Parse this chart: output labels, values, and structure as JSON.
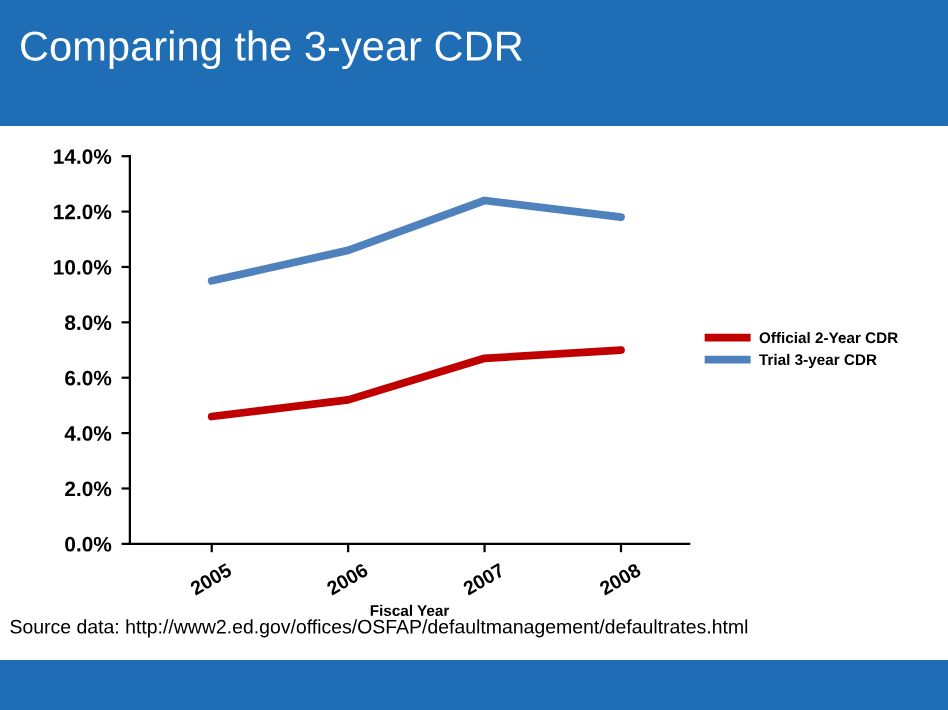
{
  "chart_data": {
    "type": "line",
    "title": "Comparing the 3-year CDR",
    "xlabel": "Fiscal Year",
    "categories": [
      "2005",
      "2006",
      "2007",
      "2008"
    ],
    "series": [
      {
        "name": "Official 2-Year CDR",
        "color": "#c00000",
        "values": [
          4.6,
          5.2,
          6.7,
          7.0
        ]
      },
      {
        "name": "Trial 3-year CDR",
        "color": "#4f81bd",
        "values": [
          9.5,
          10.6,
          12.4,
          11.8
        ]
      }
    ],
    "ylim": [
      0,
      14
    ],
    "yticks": [
      {
        "value": 0,
        "label": "0.0%"
      },
      {
        "value": 2,
        "label": "2.0%"
      },
      {
        "value": 4,
        "label": "4.0%"
      },
      {
        "value": 6,
        "label": "6.0%"
      },
      {
        "value": 8,
        "label": "8.0%"
      },
      {
        "value": 10,
        "label": "10.0%"
      },
      {
        "value": 12,
        "label": "12.0%"
      },
      {
        "value": 14,
        "label": "14.0%"
      }
    ],
    "grid": false,
    "legend": "right",
    "marker": "none",
    "line_style": "solid",
    "annotations": [
      "Source data: http://www2.ed.gov/offices/OSFAP/defaultmanagement/defaultrates.html"
    ]
  }
}
